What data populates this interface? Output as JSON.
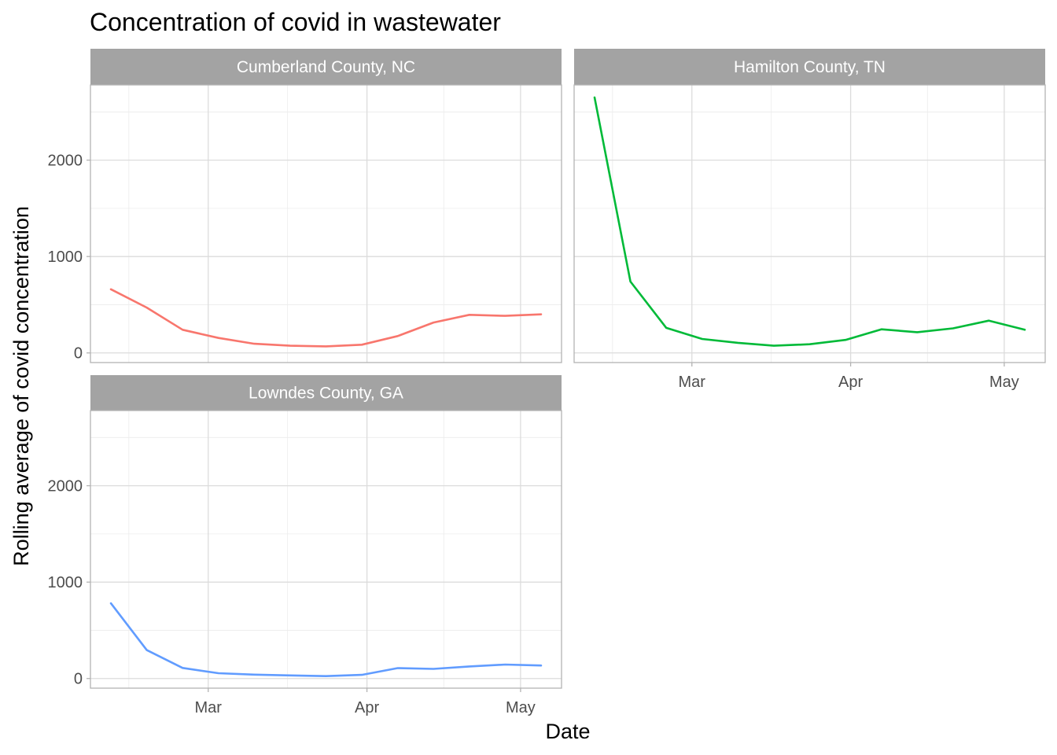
{
  "chart_data": {
    "type": "line",
    "title": "Concentration of covid in wastewater",
    "xlabel": "Date",
    "ylabel": "Rolling average of covid concentration",
    "x_ticks": [
      "Mar",
      "Apr",
      "May"
    ],
    "y_ticks": [
      0,
      1000,
      2000
    ],
    "ylim": [
      -100,
      2780
    ],
    "grid": true,
    "legend": "none",
    "panels": [
      {
        "name": "Cumberland County, NC",
        "color": "#F8766D",
        "x": [
          "2022-02-10",
          "2022-02-17",
          "2022-02-24",
          "2022-03-03",
          "2022-03-10",
          "2022-03-17",
          "2022-03-24",
          "2022-03-31",
          "2022-04-07",
          "2022-04-14",
          "2022-04-21",
          "2022-04-28",
          "2022-05-05"
        ],
        "values": [
          660,
          470,
          240,
          155,
          95,
          75,
          68,
          85,
          175,
          315,
          395,
          385,
          400
        ]
      },
      {
        "name": "Hamilton County, TN",
        "color": "#00BA38",
        "x": [
          "2022-02-10",
          "2022-02-17",
          "2022-02-24",
          "2022-03-03",
          "2022-03-10",
          "2022-03-17",
          "2022-03-24",
          "2022-03-31",
          "2022-04-07",
          "2022-04-14",
          "2022-04-21",
          "2022-04-28",
          "2022-05-05"
        ],
        "values": [
          2650,
          740,
          260,
          145,
          105,
          75,
          90,
          135,
          245,
          215,
          255,
          335,
          240
        ]
      },
      {
        "name": "Lowndes County, GA",
        "color": "#619CFF",
        "x": [
          "2022-02-10",
          "2022-02-17",
          "2022-02-24",
          "2022-03-03",
          "2022-03-10",
          "2022-03-17",
          "2022-03-24",
          "2022-03-31",
          "2022-04-07",
          "2022-04-14",
          "2022-04-21",
          "2022-04-28",
          "2022-05-05"
        ],
        "values": [
          780,
          295,
          110,
          55,
          40,
          32,
          25,
          38,
          108,
          100,
          125,
          145,
          135
        ]
      }
    ]
  }
}
